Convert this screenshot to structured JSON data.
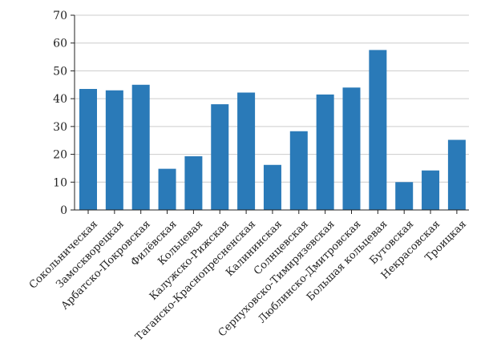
{
  "chart_data": {
    "type": "bar",
    "title": "",
    "xlabel": "",
    "ylabel": "",
    "categories": [
      "Сокольническая",
      "Замоскворецкая",
      "Арбатско-Покровская",
      "Филёвская",
      "Кольцевая",
      "Калужско-Рижская",
      "Таганско-Краснопресненская",
      "Калининская",
      "Солнцевская",
      "Серпуховско-Тимирязевская",
      "Люблинско-Дмитровская",
      "Большая кольцевая",
      "Бутовская",
      "Некрасовская",
      "Троицкая"
    ],
    "values": [
      43.5,
      43.0,
      45.0,
      14.8,
      19.3,
      38.0,
      42.2,
      16.2,
      28.3,
      41.5,
      44.0,
      57.5,
      10.0,
      14.2,
      25.2
    ],
    "ylim": [
      0,
      70
    ],
    "yticks": [
      "0",
      "10",
      "20",
      "30",
      "40",
      "50",
      "60",
      "70"
    ],
    "grid": true,
    "legend": "none",
    "bar_color": "#2a7ab8"
  }
}
